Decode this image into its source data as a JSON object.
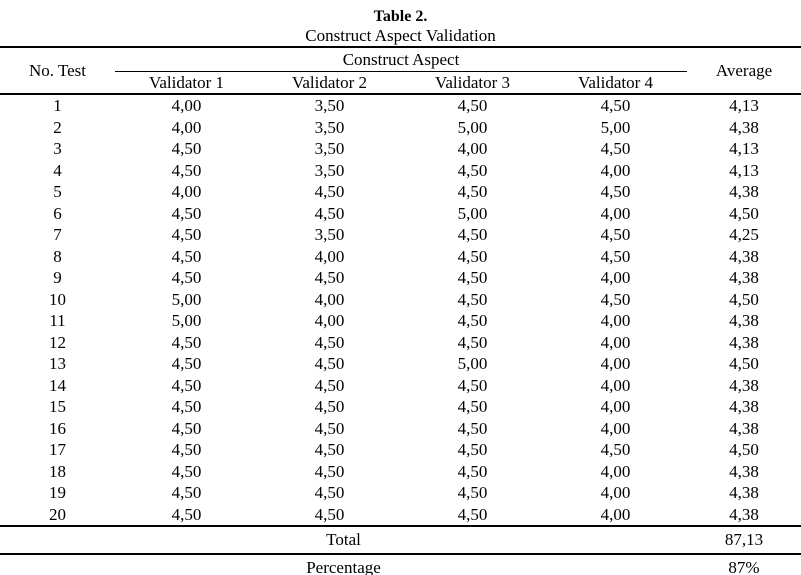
{
  "title": "Table 2.",
  "subtitle": "Construct Aspect Validation",
  "colors": {
    "background": "#ffffff",
    "text": "#000000",
    "border": "#000000"
  },
  "table": {
    "no_test_header": "No. Test",
    "group_header": "Construct Aspect",
    "validator_headers": [
      "Validator 1",
      "Validator 2",
      "Validator 3",
      "Validator 4"
    ],
    "average_header": "Average",
    "rows": [
      {
        "no": "1",
        "v1": "4,00",
        "v2": "3,50",
        "v3": "4,50",
        "v4": "4,50",
        "avg": "4,13"
      },
      {
        "no": "2",
        "v1": "4,00",
        "v2": "3,50",
        "v3": "5,00",
        "v4": "5,00",
        "avg": "4,38"
      },
      {
        "no": "3",
        "v1": "4,50",
        "v2": "3,50",
        "v3": "4,00",
        "v4": "4,50",
        "avg": "4,13"
      },
      {
        "no": "4",
        "v1": "4,50",
        "v2": "3,50",
        "v3": "4,50",
        "v4": "4,00",
        "avg": "4,13"
      },
      {
        "no": "5",
        "v1": "4,00",
        "v2": "4,50",
        "v3": "4,50",
        "v4": "4,50",
        "avg": "4,38"
      },
      {
        "no": "6",
        "v1": "4,50",
        "v2": "4,50",
        "v3": "5,00",
        "v4": "4,00",
        "avg": "4,50"
      },
      {
        "no": "7",
        "v1": "4,50",
        "v2": "3,50",
        "v3": "4,50",
        "v4": "4,50",
        "avg": "4,25"
      },
      {
        "no": "8",
        "v1": "4,50",
        "v2": "4,00",
        "v3": "4,50",
        "v4": "4,50",
        "avg": "4,38"
      },
      {
        "no": "9",
        "v1": "4,50",
        "v2": "4,50",
        "v3": "4,50",
        "v4": "4,00",
        "avg": "4,38"
      },
      {
        "no": "10",
        "v1": "5,00",
        "v2": "4,00",
        "v3": "4,50",
        "v4": "4,50",
        "avg": "4,50"
      },
      {
        "no": "11",
        "v1": "5,00",
        "v2": "4,00",
        "v3": "4,50",
        "v4": "4,00",
        "avg": "4,38"
      },
      {
        "no": "12",
        "v1": "4,50",
        "v2": "4,50",
        "v3": "4,50",
        "v4": "4,00",
        "avg": "4,38"
      },
      {
        "no": "13",
        "v1": "4,50",
        "v2": "4,50",
        "v3": "5,00",
        "v4": "4,00",
        "avg": "4,50"
      },
      {
        "no": "14",
        "v1": "4,50",
        "v2": "4,50",
        "v3": "4,50",
        "v4": "4,00",
        "avg": "4,38"
      },
      {
        "no": "15",
        "v1": "4,50",
        "v2": "4,50",
        "v3": "4,50",
        "v4": "4,00",
        "avg": "4,38"
      },
      {
        "no": "16",
        "v1": "4,50",
        "v2": "4,50",
        "v3": "4,50",
        "v4": "4,00",
        "avg": "4,38"
      },
      {
        "no": "17",
        "v1": "4,50",
        "v2": "4,50",
        "v3": "4,50",
        "v4": "4,50",
        "avg": "4,50"
      },
      {
        "no": "18",
        "v1": "4,50",
        "v2": "4,50",
        "v3": "4,50",
        "v4": "4,00",
        "avg": "4,38"
      },
      {
        "no": "19",
        "v1": "4,50",
        "v2": "4,50",
        "v3": "4,50",
        "v4": "4,00",
        "avg": "4,38"
      },
      {
        "no": "20",
        "v1": "4,50",
        "v2": "4,50",
        "v3": "4,50",
        "v4": "4,00",
        "avg": "4,38"
      }
    ],
    "total_label": "Total",
    "total_value": "87,13",
    "percentage_label": "Percentage",
    "percentage_value": "87%"
  }
}
